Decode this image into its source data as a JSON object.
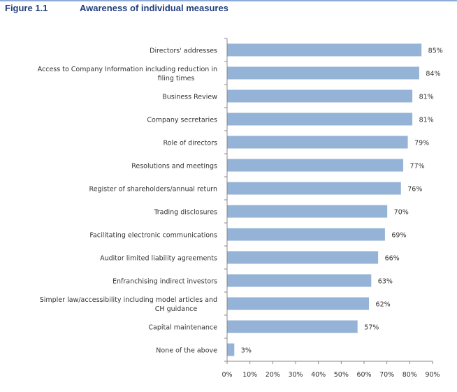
{
  "figure_label": "Figure 1.1",
  "chart_data": {
    "type": "bar",
    "orientation": "horizontal",
    "title": "Awareness of individual measures",
    "xlabel": "",
    "ylabel": "",
    "xlim": [
      0,
      90
    ],
    "xticks": [
      "0%",
      "10%",
      "20%",
      "30%",
      "40%",
      "50%",
      "60%",
      "70%",
      "80%",
      "90%"
    ],
    "categories": [
      [
        "Directors' addresses"
      ],
      [
        "Access to Company Information including reduction in",
        "filing times"
      ],
      [
        "Business Review"
      ],
      [
        "Company secretaries"
      ],
      [
        "Role of directors"
      ],
      [
        "Resolutions and meetings"
      ],
      [
        "Register of shareholders/annual return"
      ],
      [
        "Trading disclosures"
      ],
      [
        "Facilitating electronic communications"
      ],
      [
        "Auditor limited liability agreements"
      ],
      [
        "Enfranchising indirect investors"
      ],
      [
        "Simpler law/accessibility including model articles and",
        "CH guidance"
      ],
      [
        "Capital maintenance"
      ],
      [
        "None of the above"
      ]
    ],
    "values": [
      85,
      84,
      81,
      81,
      79,
      77,
      76,
      70,
      69,
      66,
      63,
      62,
      57,
      3
    ],
    "data_labels": [
      "85%",
      "84%",
      "81%",
      "81%",
      "79%",
      "77%",
      "76%",
      "70%",
      "69%",
      "66%",
      "63%",
      "62%",
      "57%",
      "3%"
    ],
    "bar_color": "#95b3d7",
    "grid": false,
    "legend": "none"
  }
}
